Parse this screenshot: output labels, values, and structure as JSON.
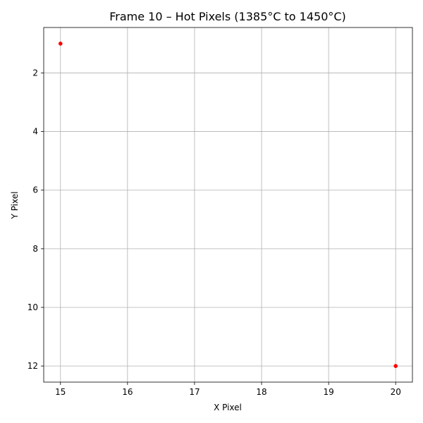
{
  "chart_data": {
    "type": "scatter",
    "title": "Frame 10 – Hot Pixels (1385°C to 1450°C)",
    "xlabel": "X Pixel",
    "ylabel": "Y Pixel",
    "xlim": [
      14.75,
      20.25
    ],
    "ylim": [
      12.55,
      0.45
    ],
    "y_inverted": true,
    "x_ticks": [
      15,
      16,
      17,
      18,
      19,
      20
    ],
    "y_ticks": [
      2,
      4,
      6,
      8,
      10,
      12
    ],
    "grid": true,
    "marker_color": "#ff0000",
    "points": [
      {
        "x": 15,
        "y": 1
      },
      {
        "x": 20,
        "y": 12
      }
    ]
  }
}
